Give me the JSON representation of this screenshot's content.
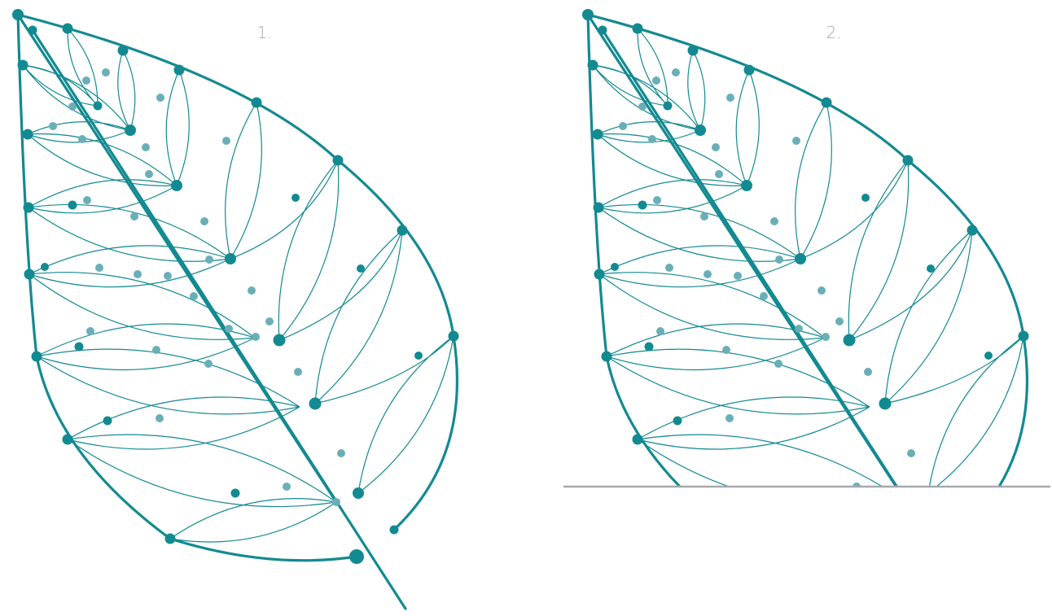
{
  "panels": [
    {
      "label": "1."
    },
    {
      "label": "2."
    }
  ]
}
